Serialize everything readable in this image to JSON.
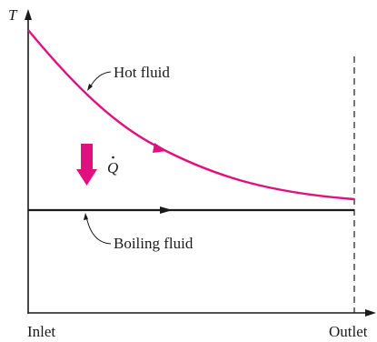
{
  "axes": {
    "y_label": "T",
    "x_start_label": "Inlet",
    "x_end_label": "Outlet"
  },
  "curves": {
    "hot_fluid_label": "Hot fluid",
    "boiling_fluid_label": "Boiling fluid",
    "heat_label": "Q"
  },
  "colors": {
    "hot_fluid": "#e0107f",
    "heat_arrow": "#e0107f",
    "boiling_fluid": "#1a1a1a",
    "axes": "#1a1a1a"
  }
}
